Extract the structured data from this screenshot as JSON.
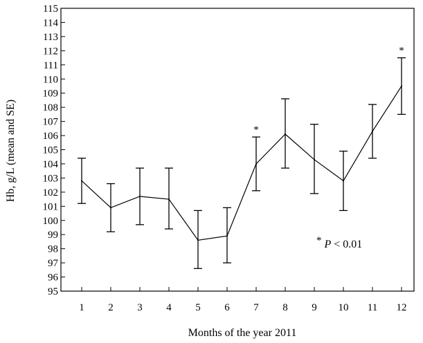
{
  "chart_data": {
    "type": "line",
    "xlabel": "Months of the year 2011",
    "ylabel": "Hb, g/L (mean and SE)",
    "categories": [
      "1",
      "2",
      "3",
      "4",
      "5",
      "6",
      "7",
      "8",
      "9",
      "10",
      "11",
      "12"
    ],
    "ylim": [
      95,
      115
    ],
    "yticks": [
      "95",
      "96",
      "97",
      "98",
      "99",
      "100",
      "101",
      "102",
      "103",
      "104",
      "105",
      "106",
      "107",
      "108",
      "109",
      "110",
      "111",
      "112",
      "113",
      "114",
      "115"
    ],
    "series": [
      {
        "values": [
          102.8,
          100.9,
          101.7,
          101.5,
          98.6,
          98.9,
          104.0,
          106.1,
          104.3,
          102.8,
          106.3,
          109.5
        ],
        "error_low": [
          101.2,
          99.2,
          99.7,
          99.4,
          96.6,
          97.0,
          102.1,
          103.7,
          101.9,
          100.7,
          104.4,
          107.5
        ],
        "error_high": [
          104.4,
          102.6,
          103.7,
          103.7,
          100.7,
          100.9,
          105.9,
          108.6,
          106.8,
          104.9,
          108.2,
          111.5
        ]
      }
    ],
    "significance_marker": "*",
    "significant_months": [
      "7",
      "12"
    ],
    "annotation": {
      "star": "*",
      "p": "P",
      "rest": " < 0.01"
    },
    "grid": false,
    "legend": "none"
  }
}
